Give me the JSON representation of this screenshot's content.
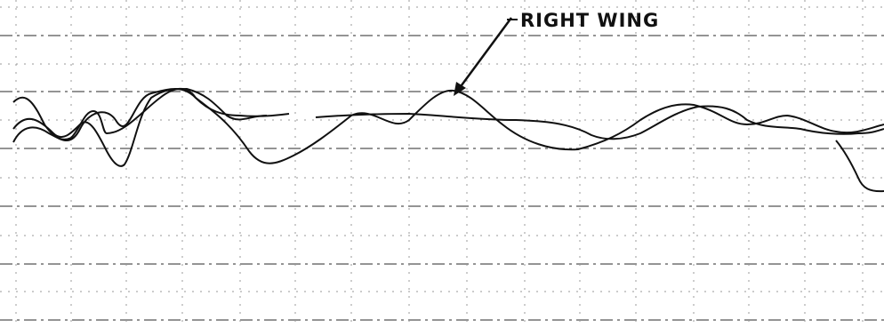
{
  "annotation": {
    "label": "RIGHT WING"
  }
}
